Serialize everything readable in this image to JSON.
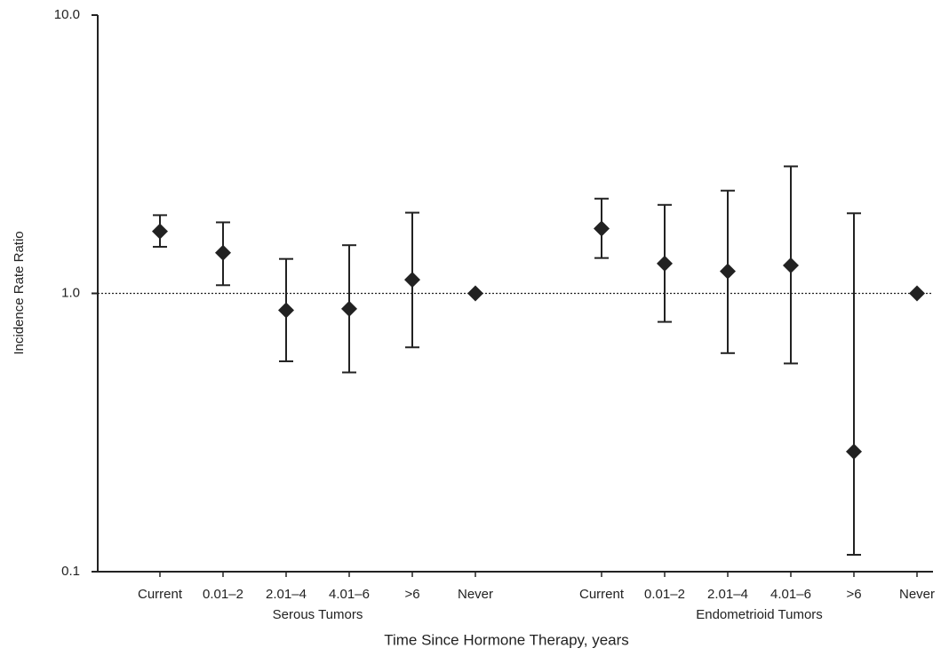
{
  "chart_data": {
    "type": "errorbar",
    "y_label": "Incidence Rate Ratio",
    "x_label": "Time Since Hormone Therapy, years",
    "log_scale": true,
    "ylim": [
      0.1,
      10
    ],
    "yticks": [
      0.1,
      {
        "value": 1,
        "label": "1.0"
      },
      {
        "value": 10,
        "label": "10.0"
      }
    ],
    "reference_line": 1,
    "color": "#222222",
    "groups": [
      {
        "name": "Serous Tumors",
        "categories": [
          "Current",
          "0.01–2",
          "2.01–4",
          "4.01–6",
          ">6",
          "Never"
        ],
        "values": [
          1.67,
          1.4,
          0.87,
          0.88,
          1.12,
          1.0
        ],
        "lower": [
          1.47,
          1.07,
          0.57,
          0.52,
          0.64,
          null
        ],
        "upper": [
          1.91,
          1.8,
          1.33,
          1.49,
          1.95,
          null
        ]
      },
      {
        "name": "Endometrioid Tumors",
        "categories": [
          "Current",
          "0.01–2",
          "2.01–4",
          "4.01–6",
          ">6",
          "Never"
        ],
        "values": [
          1.71,
          1.28,
          1.2,
          1.26,
          0.27,
          1.0
        ],
        "lower": [
          1.34,
          0.79,
          0.61,
          0.56,
          0.115,
          null
        ],
        "upper": [
          2.19,
          2.08,
          2.34,
          2.86,
          1.94,
          null
        ]
      }
    ]
  }
}
